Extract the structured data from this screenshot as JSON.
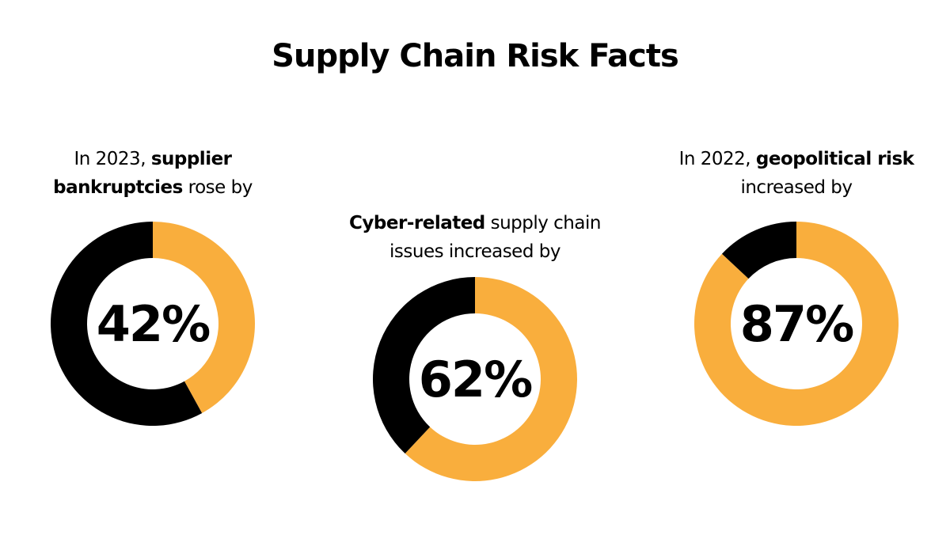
{
  "title": "Supply Chain Risk Facts",
  "colors": {
    "highlight": "#F9AE3D",
    "remainder": "#000000"
  },
  "chart_data": [
    {
      "type": "pie",
      "variant": "donut",
      "value": 42,
      "label": "42%",
      "caption": [
        {
          "text": "In 2023, ",
          "bold": false
        },
        {
          "text": "supplier",
          "bold": true
        },
        {
          "br": true
        },
        {
          "text": "bankruptcies",
          "bold": true
        },
        {
          "text": " rose by",
          "bold": false
        }
      ]
    },
    {
      "type": "pie",
      "variant": "donut",
      "value": 62,
      "label": "62%",
      "caption": [
        {
          "text": "Cyber-related",
          "bold": true
        },
        {
          "text": " supply chain",
          "bold": false
        },
        {
          "br": true
        },
        {
          "text": "issues increased by",
          "bold": false
        }
      ]
    },
    {
      "type": "pie",
      "variant": "donut",
      "value": 87,
      "label": "87%",
      "caption": [
        {
          "text": "In 2022, ",
          "bold": false
        },
        {
          "text": "geopolitical risk",
          "bold": true
        },
        {
          "br": true
        },
        {
          "text": "increased by",
          "bold": false
        }
      ]
    }
  ]
}
